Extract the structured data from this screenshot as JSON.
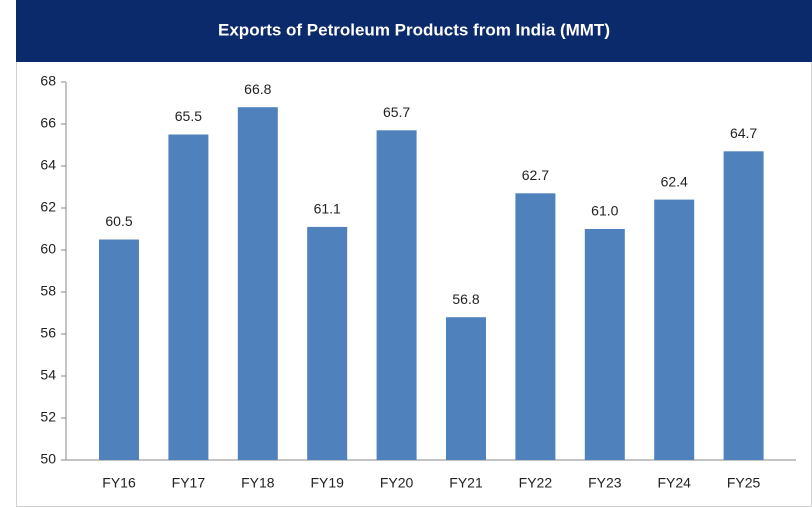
{
  "chart_data": {
    "type": "bar",
    "title": "Exports of Petroleum Products from India (MMT)",
    "categories": [
      "FY16",
      "FY17",
      "FY18",
      "FY19",
      "FY20",
      "FY21",
      "FY22",
      "FY23",
      "FY24",
      "FY25"
    ],
    "values": [
      60.5,
      65.5,
      66.8,
      61.1,
      65.7,
      56.8,
      62.7,
      61.0,
      62.4,
      64.7
    ],
    "value_labels": [
      "60.5",
      "65.5",
      "66.8",
      "61.1",
      "65.7",
      "56.8",
      "62.7",
      "61.0",
      "62.4",
      "64.7"
    ],
    "color": "#4f81bd",
    "ylim": [
      50,
      68
    ],
    "yticks": [
      50,
      52,
      54,
      56,
      58,
      60,
      62,
      64,
      66,
      68
    ],
    "grid": false
  }
}
